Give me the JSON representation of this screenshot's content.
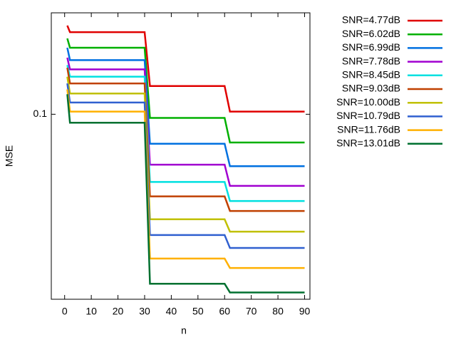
{
  "chart_data": {
    "type": "line",
    "x_label": "n",
    "y_label": "MSE",
    "log_y": true,
    "x": [
      1,
      2,
      30,
      32,
      60,
      62,
      90
    ],
    "xlim": [
      -5,
      92
    ],
    "xticks": [
      0,
      10,
      20,
      30,
      40,
      50,
      60,
      70,
      80,
      90
    ],
    "ylim": [
      0.0127,
      0.31
    ],
    "yticks": [
      0.1
    ],
    "legend": "outside-right",
    "series": [
      {
        "name": "SNR=4.77dB",
        "color": "#e00000",
        "values": [
          0.269,
          0.25,
          0.25,
          0.137,
          0.137,
          0.103,
          0.103
        ]
      },
      {
        "name": "SNR=6.02dB",
        "color": "#00b000",
        "values": [
          0.233,
          0.21,
          0.21,
          0.096,
          0.096,
          0.073,
          0.073
        ]
      },
      {
        "name": "SNR=6.99dB",
        "color": "#0070e0",
        "values": [
          0.21,
          0.183,
          0.183,
          0.072,
          0.072,
          0.056,
          0.056
        ]
      },
      {
        "name": "SNR=7.78dB",
        "color": "#a000d0",
        "values": [
          0.188,
          0.165,
          0.165,
          0.057,
          0.057,
          0.045,
          0.045
        ]
      },
      {
        "name": "SNR=8.45dB",
        "color": "#00e0e0",
        "values": [
          0.173,
          0.152,
          0.152,
          0.047,
          0.047,
          0.038,
          0.038
        ]
      },
      {
        "name": "SNR=9.03dB",
        "color": "#c04000",
        "values": [
          0.168,
          0.141,
          0.141,
          0.04,
          0.04,
          0.034,
          0.034
        ]
      },
      {
        "name": "SNR=10.00dB",
        "color": "#c0c000",
        "values": [
          0.152,
          0.126,
          0.126,
          0.031,
          0.031,
          0.027,
          0.027
        ]
      },
      {
        "name": "SNR=10.79dB",
        "color": "#3060d0",
        "values": [
          0.141,
          0.114,
          0.114,
          0.026,
          0.026,
          0.0225,
          0.0225
        ]
      },
      {
        "name": "SNR=11.76dB",
        "color": "#ffb000",
        "values": [
          0.132,
          0.103,
          0.103,
          0.02,
          0.02,
          0.018,
          0.018
        ]
      },
      {
        "name": "SNR=13.01dB",
        "color": "#007030",
        "values": [
          0.125,
          0.091,
          0.091,
          0.0151,
          0.0151,
          0.0137,
          0.0137
        ]
      }
    ]
  }
}
